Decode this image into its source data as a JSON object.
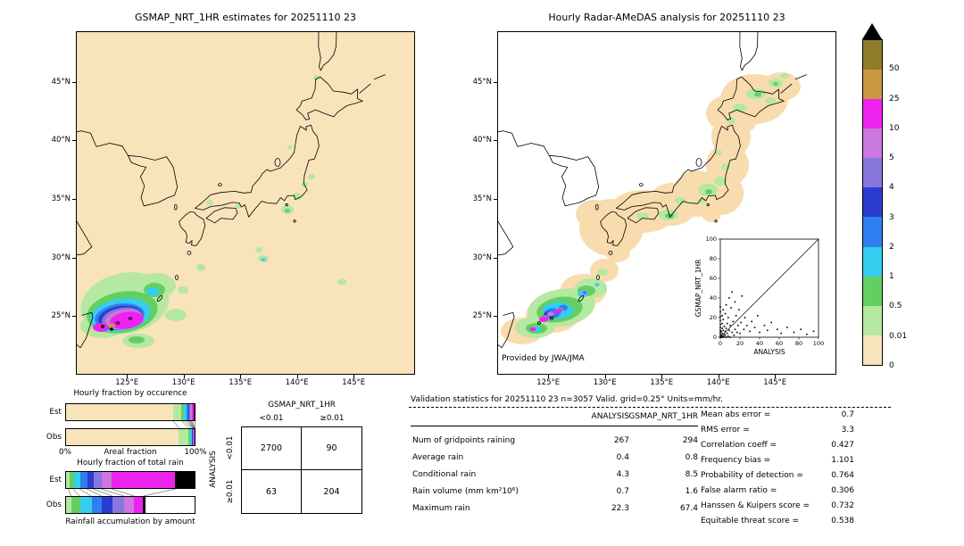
{
  "left_map": {
    "title": "GSMAP_NRT_1HR estimates for 20251110 23",
    "x_ticks": [
      "125°E",
      "130°E",
      "135°E",
      "140°E",
      "145°E"
    ],
    "y_ticks": [
      "45°N",
      "40°N",
      "35°N",
      "30°N",
      "25°N"
    ]
  },
  "right_map": {
    "title": "Hourly Radar-AMeDAS analysis for 20251110 23",
    "credit": "Provided by JWA/JMA",
    "x_ticks": [
      "125°E",
      "130°E",
      "135°E",
      "140°E",
      "145°E"
    ],
    "y_ticks": [
      "45°N",
      "40°N",
      "35°N",
      "30°N",
      "25°N"
    ]
  },
  "colorbar": {
    "labels": [
      "50",
      "25",
      "10",
      "5",
      "4",
      "3",
      "2",
      "1",
      "0.5",
      "0.01",
      "0"
    ],
    "colors": [
      "#8f7d2a",
      "#c9973f",
      "#ee22ee",
      "#cc77dd",
      "#8877dd",
      "#2a3cd0",
      "#2f7ff0",
      "#35cdf0",
      "#63cf63",
      "#b5e8a0",
      "#f8e3bb"
    ]
  },
  "inset": {
    "ylabel": "GSMAP_NRT_1HR",
    "xlabel": "ANALYSIS",
    "ticks": [
      "0",
      "20",
      "40",
      "60",
      "80",
      "100"
    ]
  },
  "fractions": {
    "occurrence_title": "Hourly fraction by occurence",
    "totalrain_title": "Hourly fraction of total rain",
    "footer": "Rainfall accumulation by amount",
    "est_label": "Est",
    "obs_label": "Obs",
    "axis": {
      "left": "0%",
      "center": "Areal fraction",
      "right": "100%"
    }
  },
  "contingency": {
    "col_title": "GSMAP_NRT_1HR",
    "row_title": "ANALYSIS",
    "col_labels": [
      "<0.01",
      "≥0.01"
    ],
    "row_labels": [
      "<0.01",
      "≥0.01"
    ],
    "cells": [
      [
        "2700",
        "90"
      ],
      [
        "63",
        "204"
      ]
    ]
  },
  "validation": {
    "title": "Validation statistics for 20251110 23  n=3057 Valid. grid=0.25° Units=mm/hr.",
    "columns": [
      "ANALYSIS",
      "GSMAP_NRT_1HR"
    ],
    "rows": [
      {
        "label": "Num of gridpoints raining",
        "analysis": "267",
        "gsmap": "294"
      },
      {
        "label": "Average rain",
        "analysis": "0.4",
        "gsmap": "0.8"
      },
      {
        "label": "Conditional rain",
        "analysis": "4.3",
        "gsmap": "8.5"
      },
      {
        "label": "Rain volume (mm km²10⁶)",
        "analysis": "0.7",
        "gsmap": "1.6"
      },
      {
        "label": "Maximum rain",
        "analysis": "22.3",
        "gsmap": "67.4"
      }
    ],
    "stats": [
      {
        "label": "Mean abs error =",
        "value": "0.7"
      },
      {
        "label": "RMS error =",
        "value": "3.3"
      },
      {
        "label": "Correlation coe​ff =",
        "value": "0.427"
      },
      {
        "label": "Frequency bias =",
        "value": "1.101"
      },
      {
        "label": "Probability of detection =",
        "value": "0.764"
      },
      {
        "label": "False alarm ratio =",
        "value": "0.306"
      },
      {
        "label": "Hanssen & Kuipers score =",
        "value": "0.732"
      },
      {
        "label": "Equitable threat score =",
        "value": "0.538"
      }
    ]
  },
  "chart_data": {
    "type": "map",
    "date": "20251110 23",
    "units": "mm/hr",
    "grid": "0.25°",
    "n": 3057,
    "colorbar_levels": [
      0,
      0.01,
      0.5,
      1,
      2,
      3,
      4,
      5,
      10,
      25,
      50
    ],
    "palette": {
      "olive": "#8f7d2a",
      "tan": "#c9973f",
      "magenta": "#ee22ee",
      "orchid": "#cc77dd",
      "purple": "#8877dd",
      "dkblue": "#2a3cd0",
      "blue": "#2f7ff0",
      "cyan": "#35cdf0",
      "green": "#63cf63",
      "ltgreen": "#b5e8a0",
      "cream": "#f8e3bb",
      "peach": "#f8dcae",
      "black": "#000000",
      "white": "#ffffff"
    },
    "fraction_bars": {
      "occurrence": {
        "est": [
          [
            "cream",
            83
          ],
          [
            "ltgreen",
            6.5
          ],
          [
            "green",
            2.5
          ],
          [
            "cyan",
            1.8
          ],
          [
            "blue",
            1.2
          ],
          [
            "dkblue",
            0.9
          ],
          [
            "purple",
            0.9
          ],
          [
            "orchid",
            1.0
          ],
          [
            "magenta",
            1.7
          ],
          [
            "black",
            0.5
          ]
        ],
        "obs": [
          [
            "cream",
            87.5
          ],
          [
            "ltgreen",
            7.5
          ],
          [
            "green",
            1.6
          ],
          [
            "cyan",
            1.0
          ],
          [
            "blue",
            0.6
          ],
          [
            "dkblue",
            0.4
          ],
          [
            "purple",
            0.4
          ],
          [
            "orchid",
            0.4
          ],
          [
            "magenta",
            0.5
          ],
          [
            "black",
            0.1
          ]
        ]
      },
      "total_rain": {
        "est": [
          [
            "ltgreen",
            2.5
          ],
          [
            "green",
            3.5
          ],
          [
            "cyan",
            5
          ],
          [
            "blue",
            5.5
          ],
          [
            "dkblue",
            5
          ],
          [
            "purple",
            6
          ],
          [
            "orchid",
            8
          ],
          [
            "magenta",
            49
          ],
          [
            "black",
            15.5
          ]
        ],
        "obs": [
          [
            "ltgreen",
            4.5
          ],
          [
            "green",
            6.5
          ],
          [
            "cyan",
            9
          ],
          [
            "blue",
            8
          ],
          [
            "dkblue",
            8
          ],
          [
            "purple",
            9
          ],
          [
            "orchid",
            8
          ],
          [
            "magenta",
            7
          ],
          [
            "black",
            2
          ],
          [
            "white",
            38
          ]
        ]
      }
    },
    "inset_scatter": {
      "type": "scatter",
      "xlabel": "ANALYSIS",
      "ylabel": "GSMAP_NRT_1HR",
      "xlim": [
        0,
        100
      ],
      "ylim": [
        0,
        100
      ],
      "diagonal": true,
      "points": [
        [
          0,
          0
        ],
        [
          0,
          1
        ],
        [
          0,
          3
        ],
        [
          0,
          5
        ],
        [
          0,
          7
        ],
        [
          0,
          10
        ],
        [
          0,
          13
        ],
        [
          0,
          17
        ],
        [
          0,
          21
        ],
        [
          0,
          26
        ],
        [
          0,
          31
        ],
        [
          1,
          0
        ],
        [
          1,
          2
        ],
        [
          1,
          6
        ],
        [
          2,
          0
        ],
        [
          2,
          4
        ],
        [
          2,
          9
        ],
        [
          2,
          14
        ],
        [
          2,
          22
        ],
        [
          3,
          1
        ],
        [
          3,
          7
        ],
        [
          3,
          18
        ],
        [
          3,
          28
        ],
        [
          4,
          0
        ],
        [
          4,
          3
        ],
        [
          4,
          11
        ],
        [
          5,
          2
        ],
        [
          5,
          6
        ],
        [
          5,
          24
        ],
        [
          6,
          0
        ],
        [
          6,
          9
        ],
        [
          6,
          33
        ],
        [
          7,
          4
        ],
        [
          7,
          14
        ],
        [
          8,
          1
        ],
        [
          8,
          20
        ],
        [
          9,
          7
        ],
        [
          9,
          40
        ],
        [
          10,
          0
        ],
        [
          10,
          12
        ],
        [
          11,
          30
        ],
        [
          12,
          5
        ],
        [
          12,
          46
        ],
        [
          13,
          16
        ],
        [
          14,
          2
        ],
        [
          15,
          8
        ],
        [
          15,
          36
        ],
        [
          16,
          22
        ],
        [
          17,
          5
        ],
        [
          18,
          12
        ],
        [
          19,
          28
        ],
        [
          20,
          4
        ],
        [
          21,
          15
        ],
        [
          22,
          42
        ],
        [
          24,
          8
        ],
        [
          25,
          20
        ],
        [
          27,
          12
        ],
        [
          30,
          6
        ],
        [
          32,
          16
        ],
        [
          35,
          10
        ],
        [
          38,
          22
        ],
        [
          40,
          5
        ],
        [
          45,
          12
        ],
        [
          48,
          7
        ],
        [
          52,
          15
        ],
        [
          58,
          8
        ],
        [
          62,
          4
        ],
        [
          68,
          10
        ],
        [
          75,
          5
        ],
        [
          82,
          8
        ],
        [
          88,
          3
        ],
        [
          95,
          6
        ]
      ]
    },
    "contingency_table": {
      "columns": [
        "<0.01",
        "≥0.01"
      ],
      "rows": [
        "<0.01",
        "≥0.01"
      ],
      "values": [
        [
          2700,
          90
        ],
        [
          63,
          204
        ]
      ]
    },
    "validation_table": {
      "columns": [
        "ANALYSIS",
        "GSMAP_NRT_1HR"
      ],
      "rows": [
        [
          "Num of gridpoints raining",
          267,
          294
        ],
        [
          "Average rain",
          0.4,
          0.8
        ],
        [
          "Conditional rain",
          4.3,
          8.5
        ],
        [
          "Rain volume (mm km²10⁶)",
          0.7,
          1.6
        ],
        [
          "Maximum rain",
          22.3,
          67.4
        ]
      ]
    },
    "scores": {
      "Mean abs error": 0.7,
      "RMS error": 3.3,
      "Correlation coeff": 0.427,
      "Frequency bias": 1.101,
      "Probability of detection": 0.764,
      "False alarm ratio": 0.306,
      "Hanssen & Kuipers score": 0.732,
      "Equitable threat score": 0.538
    }
  }
}
